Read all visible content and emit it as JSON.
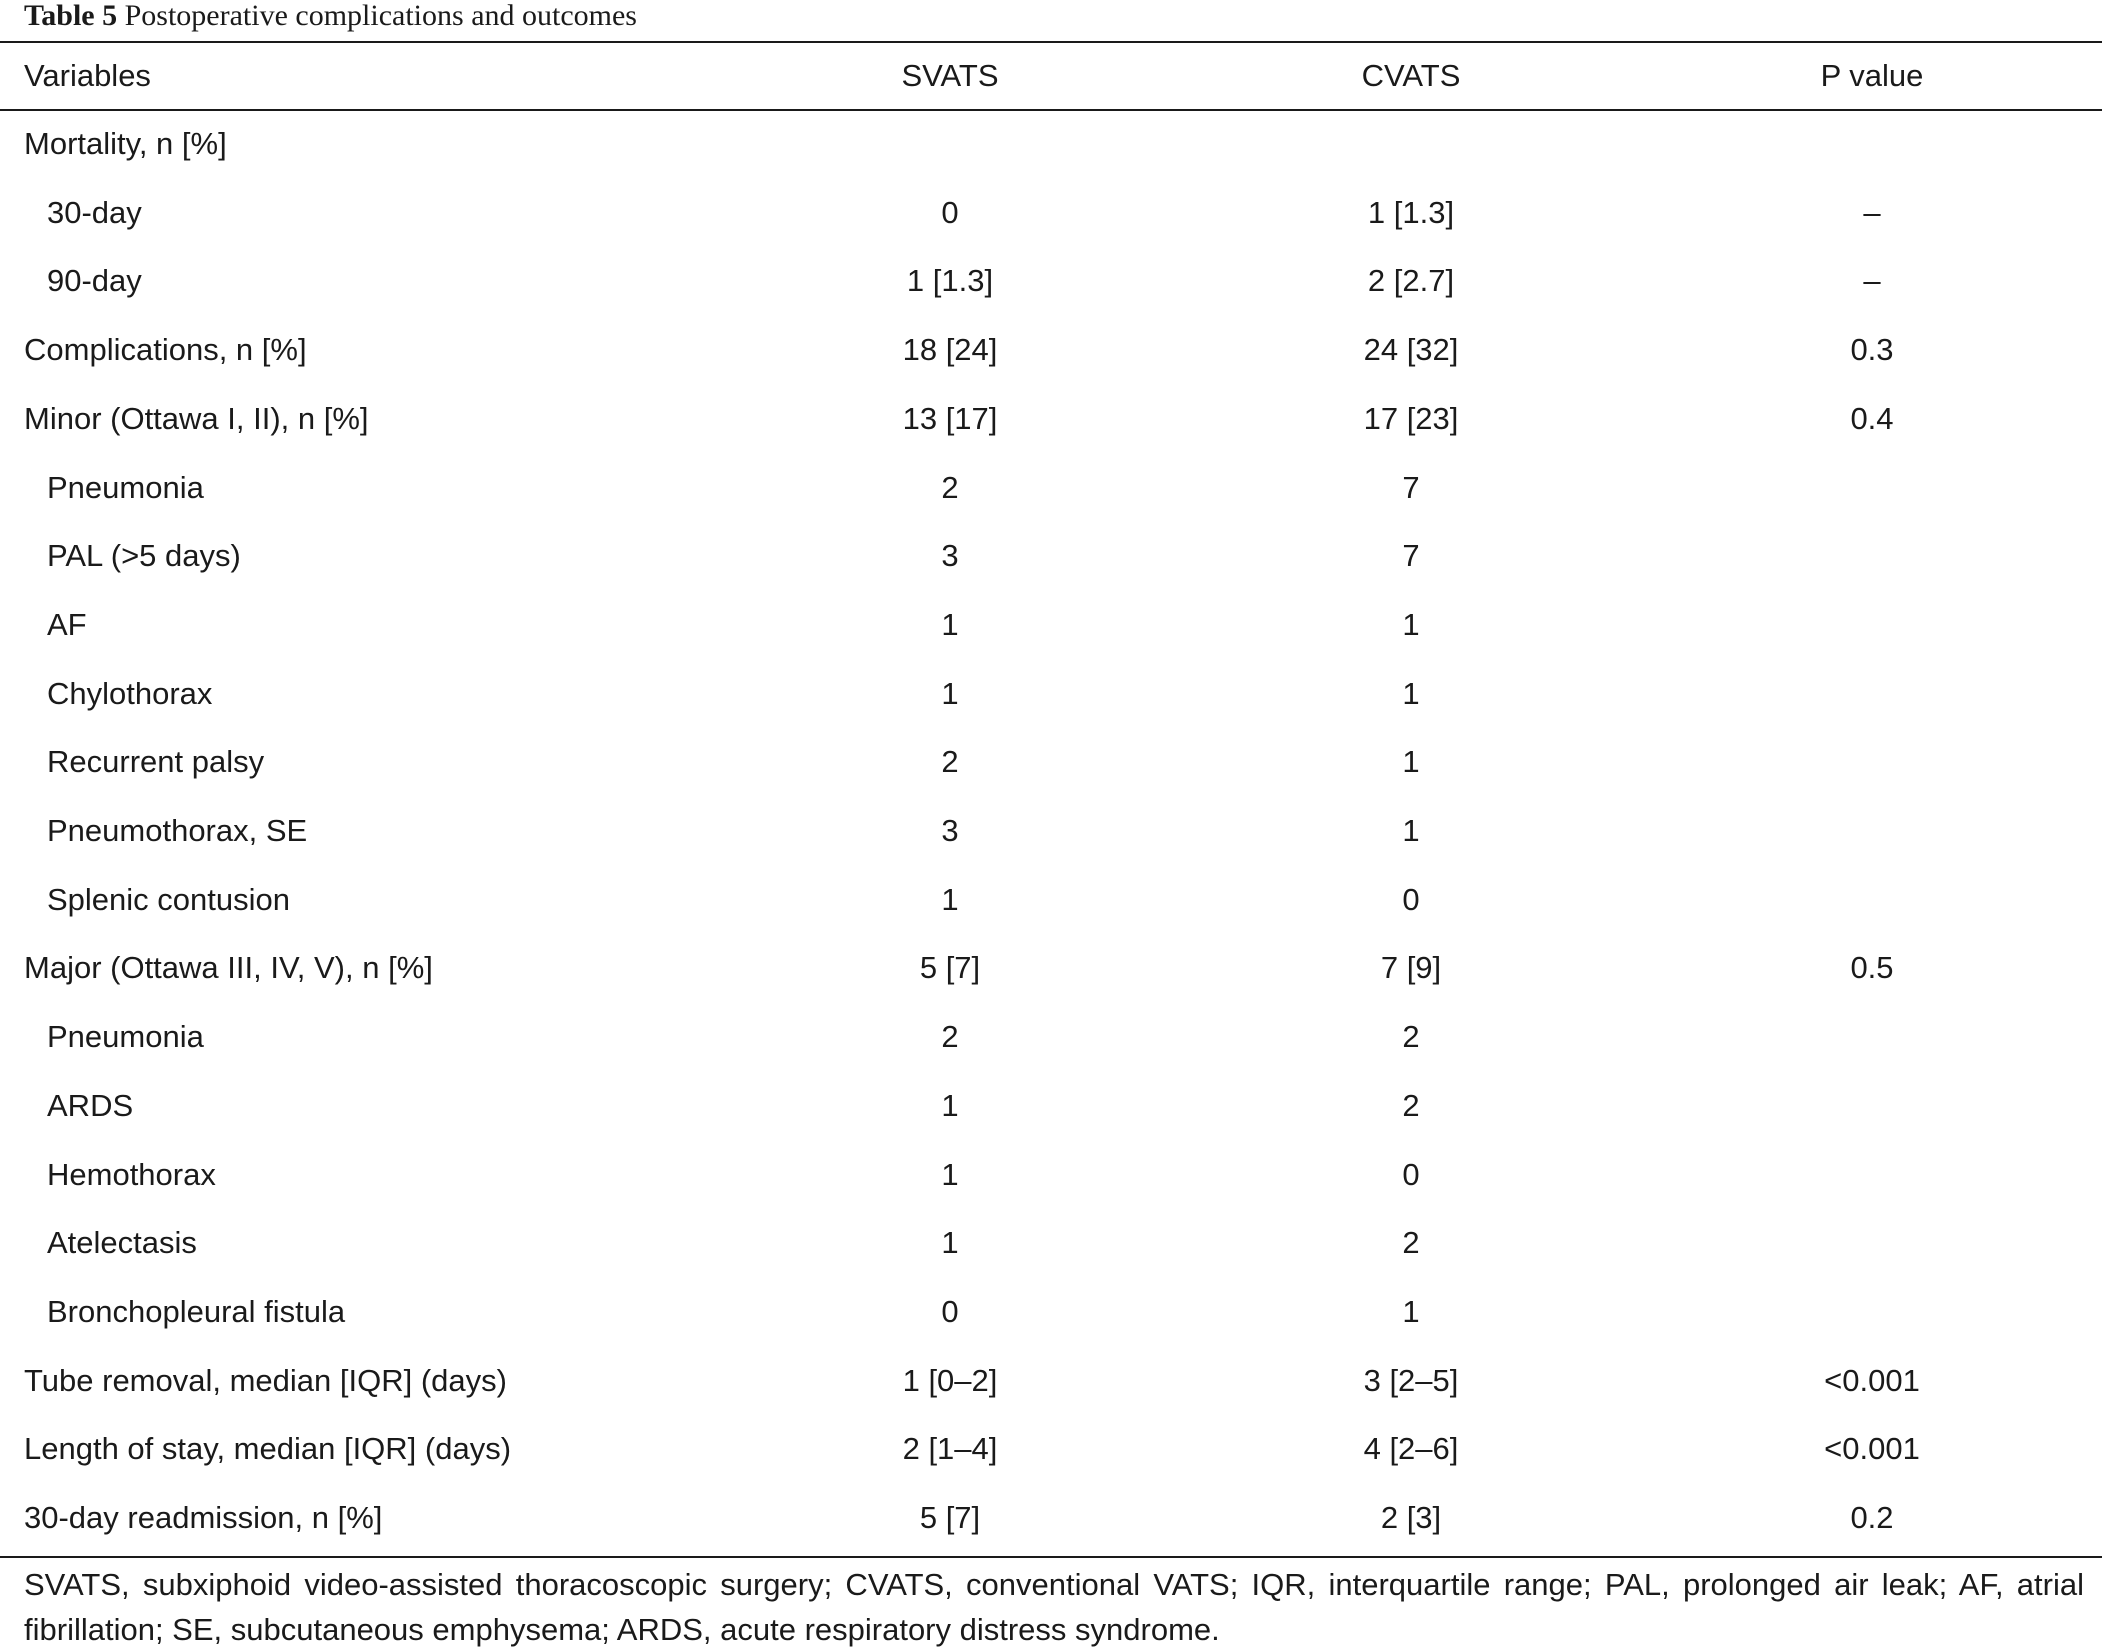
{
  "caption": {
    "number": "Table 5",
    "title": "Postoperative complications and outcomes"
  },
  "columns": [
    "Variables",
    "SVATS",
    "CVATS",
    "P value"
  ],
  "rows": [
    {
      "label": "Mortality, n [%]",
      "indent": false,
      "svats": "",
      "cvats": "",
      "p": ""
    },
    {
      "label": "30-day",
      "indent": true,
      "svats": "0",
      "cvats": "1 [1.3]",
      "p": "–"
    },
    {
      "label": "90-day",
      "indent": true,
      "svats": "1 [1.3]",
      "cvats": "2 [2.7]",
      "p": "–"
    },
    {
      "label": "Complications, n [%]",
      "indent": false,
      "svats": "18 [24]",
      "cvats": "24 [32]",
      "p": "0.3"
    },
    {
      "label": "Minor (Ottawa I, II), n [%]",
      "indent": false,
      "svats": "13 [17]",
      "cvats": "17 [23]",
      "p": "0.4"
    },
    {
      "label": "Pneumonia",
      "indent": true,
      "svats": "2",
      "cvats": "7",
      "p": ""
    },
    {
      "label": "PAL (>5 days)",
      "indent": true,
      "svats": "3",
      "cvats": "7",
      "p": ""
    },
    {
      "label": "AF",
      "indent": true,
      "svats": "1",
      "cvats": "1",
      "p": ""
    },
    {
      "label": "Chylothorax",
      "indent": true,
      "svats": "1",
      "cvats": "1",
      "p": ""
    },
    {
      "label": "Recurrent palsy",
      "indent": true,
      "svats": "2",
      "cvats": "1",
      "p": ""
    },
    {
      "label": "Pneumothorax, SE",
      "indent": true,
      "svats": "3",
      "cvats": "1",
      "p": ""
    },
    {
      "label": "Splenic contusion",
      "indent": true,
      "svats": "1",
      "cvats": "0",
      "p": ""
    },
    {
      "label": "Major (Ottawa III, IV, V), n [%]",
      "indent": false,
      "svats": "5 [7]",
      "cvats": "7 [9]",
      "p": "0.5"
    },
    {
      "label": "Pneumonia",
      "indent": true,
      "svats": "2",
      "cvats": "2",
      "p": ""
    },
    {
      "label": "ARDS",
      "indent": true,
      "svats": "1",
      "cvats": "2",
      "p": ""
    },
    {
      "label": "Hemothorax",
      "indent": true,
      "svats": "1",
      "cvats": "0",
      "p": ""
    },
    {
      "label": "Atelectasis",
      "indent": true,
      "svats": "1",
      "cvats": "2",
      "p": ""
    },
    {
      "label": "Bronchopleural fistula",
      "indent": true,
      "svats": "0",
      "cvats": "1",
      "p": ""
    },
    {
      "label": "Tube removal, median [IQR] (days)",
      "indent": false,
      "svats": "1 [0–2]",
      "cvats": "3 [2–5]",
      "p": "<0.001"
    },
    {
      "label": "Length of stay, median [IQR] (days)",
      "indent": false,
      "svats": "2 [1–4]",
      "cvats": "4 [2–6]",
      "p": "<0.001"
    },
    {
      "label": "30-day readmission, n [%]",
      "indent": false,
      "svats": "5 [7]",
      "cvats": "2 [3]",
      "p": "0.2"
    }
  ],
  "footnote": "SVATS, subxiphoid video-assisted thoracoscopic surgery; CVATS, conventional VATS; IQR, interquartile range; PAL, prolonged air leak; AF, atrial fibrillation; SE, subcutaneous emphysema; ARDS, acute respiratory distress syndrome."
}
